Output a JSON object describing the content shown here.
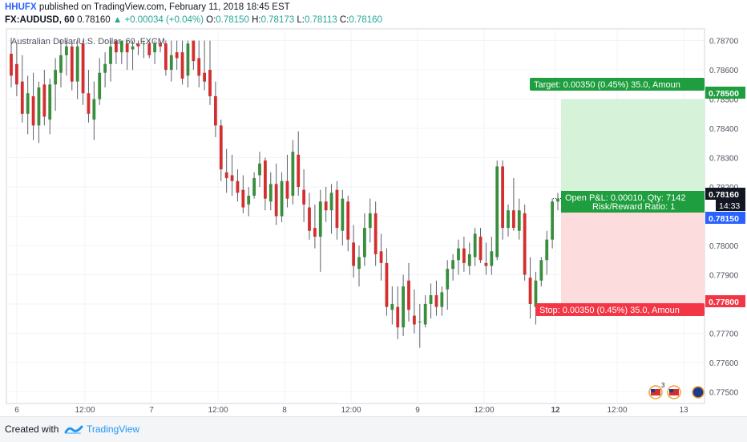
{
  "header": {
    "author": "HHUFX",
    "published": "published on TradingView.com, February 11, 2018 18:45 EST",
    "symbol": "FX:AUDUSD, 60",
    "last": "0.78160",
    "change": "▲ +0.00034 (+0.04%)",
    "ohlc": [
      {
        "k": "O:",
        "v": "0.78150"
      },
      {
        "k": "H:",
        "v": "0.78173"
      },
      {
        "k": "L:",
        "v": "0.78113"
      },
      {
        "k": "C:",
        "v": "0.78160"
      }
    ]
  },
  "footer": {
    "created": "Created with",
    "brand": "TradingView"
  },
  "colors": {
    "up": "#26a69a",
    "down": "#ef5350",
    "bull_body": "#388e3c",
    "bear_body": "#d32f2f",
    "target": "#1e9e3e",
    "stop": "#f23645",
    "price_tag": "#131722",
    "entry_tag": "#2962ff"
  },
  "chart_data": {
    "type": "candlestick",
    "title": "Australian Dollar/U.S. Dollar, 60, FXCM",
    "ylim": [
      0.7746,
      0.7874
    ],
    "y_ticks": [
      "0.78700",
      "0.78600",
      "0.78500",
      "0.78400",
      "0.78300",
      "0.78200",
      "0.78100",
      "0.78000",
      "0.77900",
      "0.77800",
      "0.77700",
      "0.77600",
      "0.77500"
    ],
    "x_ticks": [
      "6",
      "12:00",
      "7",
      "12:00",
      "8",
      "12:00",
      "9",
      "12:00",
      "12",
      "12:00",
      "13"
    ],
    "candles": [
      {
        "o": 0.78655,
        "h": 0.7871,
        "l": 0.7854,
        "c": 0.7858
      },
      {
        "o": 0.7862,
        "h": 0.7869,
        "l": 0.7851,
        "c": 0.7855
      },
      {
        "o": 0.7856,
        "h": 0.7865,
        "l": 0.7842,
        "c": 0.7845
      },
      {
        "o": 0.7845,
        "h": 0.7858,
        "l": 0.7838,
        "c": 0.7852
      },
      {
        "o": 0.7851,
        "h": 0.7859,
        "l": 0.7836,
        "c": 0.7841
      },
      {
        "o": 0.7841,
        "h": 0.7856,
        "l": 0.7835,
        "c": 0.7854
      },
      {
        "o": 0.7855,
        "h": 0.786,
        "l": 0.7841,
        "c": 0.7844
      },
      {
        "o": 0.7843,
        "h": 0.7857,
        "l": 0.7838,
        "c": 0.7855
      },
      {
        "o": 0.7855,
        "h": 0.7864,
        "l": 0.7846,
        "c": 0.786
      },
      {
        "o": 0.7859,
        "h": 0.787,
        "l": 0.7854,
        "c": 0.7865
      },
      {
        "o": 0.7865,
        "h": 0.787,
        "l": 0.7858,
        "c": 0.7868
      },
      {
        "o": 0.7868,
        "h": 0.787,
        "l": 0.7853,
        "c": 0.7856
      },
      {
        "o": 0.7856,
        "h": 0.787,
        "l": 0.785,
        "c": 0.7868
      },
      {
        "o": 0.7869,
        "h": 0.787,
        "l": 0.7848,
        "c": 0.7852
      },
      {
        "o": 0.7852,
        "h": 0.786,
        "l": 0.7842,
        "c": 0.7845
      },
      {
        "o": 0.7843,
        "h": 0.7856,
        "l": 0.7836,
        "c": 0.785
      },
      {
        "o": 0.785,
        "h": 0.7864,
        "l": 0.7848,
        "c": 0.7859
      },
      {
        "o": 0.7859,
        "h": 0.7866,
        "l": 0.7854,
        "c": 0.7862
      },
      {
        "o": 0.7862,
        "h": 0.787,
        "l": 0.7856,
        "c": 0.7868
      },
      {
        "o": 0.787,
        "h": 0.787,
        "l": 0.7862,
        "c": 0.7866
      },
      {
        "o": 0.7866,
        "h": 0.787,
        "l": 0.7862,
        "c": 0.787
      },
      {
        "o": 0.7869,
        "h": 0.787,
        "l": 0.786,
        "c": 0.7866
      },
      {
        "o": 0.7867,
        "h": 0.787,
        "l": 0.786,
        "c": 0.7868
      },
      {
        "o": 0.7869,
        "h": 0.787,
        "l": 0.7865,
        "c": 0.7868
      },
      {
        "o": 0.7869,
        "h": 0.787,
        "l": 0.7864,
        "c": 0.7869
      },
      {
        "o": 0.7869,
        "h": 0.787,
        "l": 0.7864,
        "c": 0.7865
      },
      {
        "o": 0.7866,
        "h": 0.787,
        "l": 0.7862,
        "c": 0.7869
      },
      {
        "o": 0.7869,
        "h": 0.787,
        "l": 0.7866,
        "c": 0.7868
      },
      {
        "o": 0.7869,
        "h": 0.787,
        "l": 0.7858,
        "c": 0.786
      },
      {
        "o": 0.786,
        "h": 0.787,
        "l": 0.7856,
        "c": 0.7865
      },
      {
        "o": 0.7866,
        "h": 0.787,
        "l": 0.786,
        "c": 0.7864
      },
      {
        "o": 0.7866,
        "h": 0.787,
        "l": 0.7855,
        "c": 0.7857
      },
      {
        "o": 0.7858,
        "h": 0.787,
        "l": 0.7854,
        "c": 0.7869
      },
      {
        "o": 0.787,
        "h": 0.787,
        "l": 0.786,
        "c": 0.7863
      },
      {
        "o": 0.7864,
        "h": 0.787,
        "l": 0.7854,
        "c": 0.7858
      },
      {
        "o": 0.7859,
        "h": 0.787,
        "l": 0.7853,
        "c": 0.7856
      },
      {
        "o": 0.786,
        "h": 0.787,
        "l": 0.7848,
        "c": 0.7851
      },
      {
        "o": 0.7851,
        "h": 0.7856,
        "l": 0.7837,
        "c": 0.7841
      },
      {
        "o": 0.7841,
        "h": 0.7843,
        "l": 0.7822,
        "c": 0.7826
      },
      {
        "o": 0.7825,
        "h": 0.7833,
        "l": 0.7818,
        "c": 0.7823
      },
      {
        "o": 0.7824,
        "h": 0.7831,
        "l": 0.7817,
        "c": 0.7822
      },
      {
        "o": 0.7822,
        "h": 0.7826,
        "l": 0.7815,
        "c": 0.7818
      },
      {
        "o": 0.7819,
        "h": 0.7824,
        "l": 0.7811,
        "c": 0.7813
      },
      {
        "o": 0.7814,
        "h": 0.782,
        "l": 0.781,
        "c": 0.7817
      },
      {
        "o": 0.7817,
        "h": 0.7825,
        "l": 0.7816,
        "c": 0.7823
      },
      {
        "o": 0.7824,
        "h": 0.7832,
        "l": 0.782,
        "c": 0.7828
      },
      {
        "o": 0.7829,
        "h": 0.783,
        "l": 0.7812,
        "c": 0.7816
      },
      {
        "o": 0.7815,
        "h": 0.7825,
        "l": 0.7812,
        "c": 0.7821
      },
      {
        "o": 0.7821,
        "h": 0.7828,
        "l": 0.7807,
        "c": 0.781
      },
      {
        "o": 0.781,
        "h": 0.7825,
        "l": 0.7808,
        "c": 0.7822
      },
      {
        "o": 0.7822,
        "h": 0.7831,
        "l": 0.7813,
        "c": 0.7816
      },
      {
        "o": 0.7817,
        "h": 0.7836,
        "l": 0.7814,
        "c": 0.7832
      },
      {
        "o": 0.7831,
        "h": 0.7839,
        "l": 0.7817,
        "c": 0.782
      },
      {
        "o": 0.7819,
        "h": 0.7826,
        "l": 0.7808,
        "c": 0.7814
      },
      {
        "o": 0.7813,
        "h": 0.7818,
        "l": 0.7802,
        "c": 0.7805
      },
      {
        "o": 0.7806,
        "h": 0.7814,
        "l": 0.7799,
        "c": 0.7803
      },
      {
        "o": 0.7803,
        "h": 0.7819,
        "l": 0.7791,
        "c": 0.7815
      },
      {
        "o": 0.7815,
        "h": 0.782,
        "l": 0.7808,
        "c": 0.7812
      },
      {
        "o": 0.7812,
        "h": 0.7821,
        "l": 0.7804,
        "c": 0.7818
      },
      {
        "o": 0.7819,
        "h": 0.7822,
        "l": 0.7802,
        "c": 0.7806
      },
      {
        "o": 0.7805,
        "h": 0.7819,
        "l": 0.78,
        "c": 0.7816
      },
      {
        "o": 0.7815,
        "h": 0.7817,
        "l": 0.7798,
        "c": 0.7802
      },
      {
        "o": 0.7801,
        "h": 0.7807,
        "l": 0.7789,
        "c": 0.7793
      },
      {
        "o": 0.7792,
        "h": 0.78,
        "l": 0.7786,
        "c": 0.7796
      },
      {
        "o": 0.7796,
        "h": 0.7811,
        "l": 0.7793,
        "c": 0.7806
      },
      {
        "o": 0.7806,
        "h": 0.7816,
        "l": 0.7801,
        "c": 0.7811
      },
      {
        "o": 0.7811,
        "h": 0.7815,
        "l": 0.7793,
        "c": 0.7797
      },
      {
        "o": 0.7798,
        "h": 0.7804,
        "l": 0.7788,
        "c": 0.7794
      },
      {
        "o": 0.7794,
        "h": 0.7799,
        "l": 0.7776,
        "c": 0.7779
      },
      {
        "o": 0.7778,
        "h": 0.7786,
        "l": 0.7773,
        "c": 0.778
      },
      {
        "o": 0.7779,
        "h": 0.7786,
        "l": 0.7768,
        "c": 0.7772
      },
      {
        "o": 0.7772,
        "h": 0.779,
        "l": 0.7769,
        "c": 0.7786
      },
      {
        "o": 0.7788,
        "h": 0.7794,
        "l": 0.7774,
        "c": 0.7778
      },
      {
        "o": 0.7776,
        "h": 0.7785,
        "l": 0.777,
        "c": 0.7773
      },
      {
        "o": 0.7774,
        "h": 0.778,
        "l": 0.7765,
        "c": 0.7774
      },
      {
        "o": 0.7773,
        "h": 0.7783,
        "l": 0.7772,
        "c": 0.778
      },
      {
        "o": 0.778,
        "h": 0.7787,
        "l": 0.7775,
        "c": 0.7783
      },
      {
        "o": 0.7783,
        "h": 0.7788,
        "l": 0.7776,
        "c": 0.7779
      },
      {
        "o": 0.7779,
        "h": 0.7786,
        "l": 0.7776,
        "c": 0.7784
      },
      {
        "o": 0.7785,
        "h": 0.7795,
        "l": 0.7778,
        "c": 0.7792
      },
      {
        "o": 0.7792,
        "h": 0.7797,
        "l": 0.7788,
        "c": 0.7795
      },
      {
        "o": 0.7795,
        "h": 0.7802,
        "l": 0.779,
        "c": 0.7799
      },
      {
        "o": 0.7799,
        "h": 0.7803,
        "l": 0.7791,
        "c": 0.7794
      },
      {
        "o": 0.7793,
        "h": 0.7801,
        "l": 0.779,
        "c": 0.7797
      },
      {
        "o": 0.7796,
        "h": 0.7806,
        "l": 0.7793,
        "c": 0.7804
      },
      {
        "o": 0.7803,
        "h": 0.7806,
        "l": 0.7794,
        "c": 0.7795
      },
      {
        "o": 0.7794,
        "h": 0.7801,
        "l": 0.779,
        "c": 0.7793
      },
      {
        "o": 0.7793,
        "h": 0.7803,
        "l": 0.779,
        "c": 0.7798
      },
      {
        "o": 0.7796,
        "h": 0.7829,
        "l": 0.7795,
        "c": 0.7827
      },
      {
        "o": 0.7827,
        "h": 0.7829,
        "l": 0.7802,
        "c": 0.7806
      },
      {
        "o": 0.7806,
        "h": 0.7814,
        "l": 0.7803,
        "c": 0.7812
      },
      {
        "o": 0.7812,
        "h": 0.7823,
        "l": 0.7805,
        "c": 0.7806
      },
      {
        "o": 0.7805,
        "h": 0.7816,
        "l": 0.7802,
        "c": 0.7812
      },
      {
        "o": 0.7811,
        "h": 0.7814,
        "l": 0.7788,
        "c": 0.779
      },
      {
        "o": 0.7789,
        "h": 0.7796,
        "l": 0.7775,
        "c": 0.778
      },
      {
        "o": 0.7779,
        "h": 0.7791,
        "l": 0.7773,
        "c": 0.7788
      },
      {
        "o": 0.7788,
        "h": 0.7796,
        "l": 0.7786,
        "c": 0.7795
      },
      {
        "o": 0.7795,
        "h": 0.7805,
        "l": 0.779,
        "c": 0.7802
      },
      {
        "o": 0.7802,
        "h": 0.7816,
        "l": 0.7799,
        "c": 0.7815
      },
      {
        "o": 0.7815,
        "h": 0.7818,
        "l": 0.7812,
        "c": 0.7816
      }
    ],
    "position": {
      "side": "long",
      "entry": 0.7815,
      "target": 0.785,
      "stop": 0.778,
      "last_price": 0.7816
    }
  },
  "labels": {
    "target": "Target: 0.00350 (0.45%) 35.0, Amoun",
    "stop": "Stop: 0.00350 (0.45%) 35.0, Amoun",
    "open_pl": "Open P&L: 0.00010, Qty: 7142",
    "rr": "Risk/Reward Ratio: 1",
    "tag_target": "0.78500",
    "tag_last": "0.78160",
    "tag_countdown": "14:33",
    "tag_entry": "0.78150",
    "tag_stop": "0.77800",
    "event_count": "3"
  }
}
